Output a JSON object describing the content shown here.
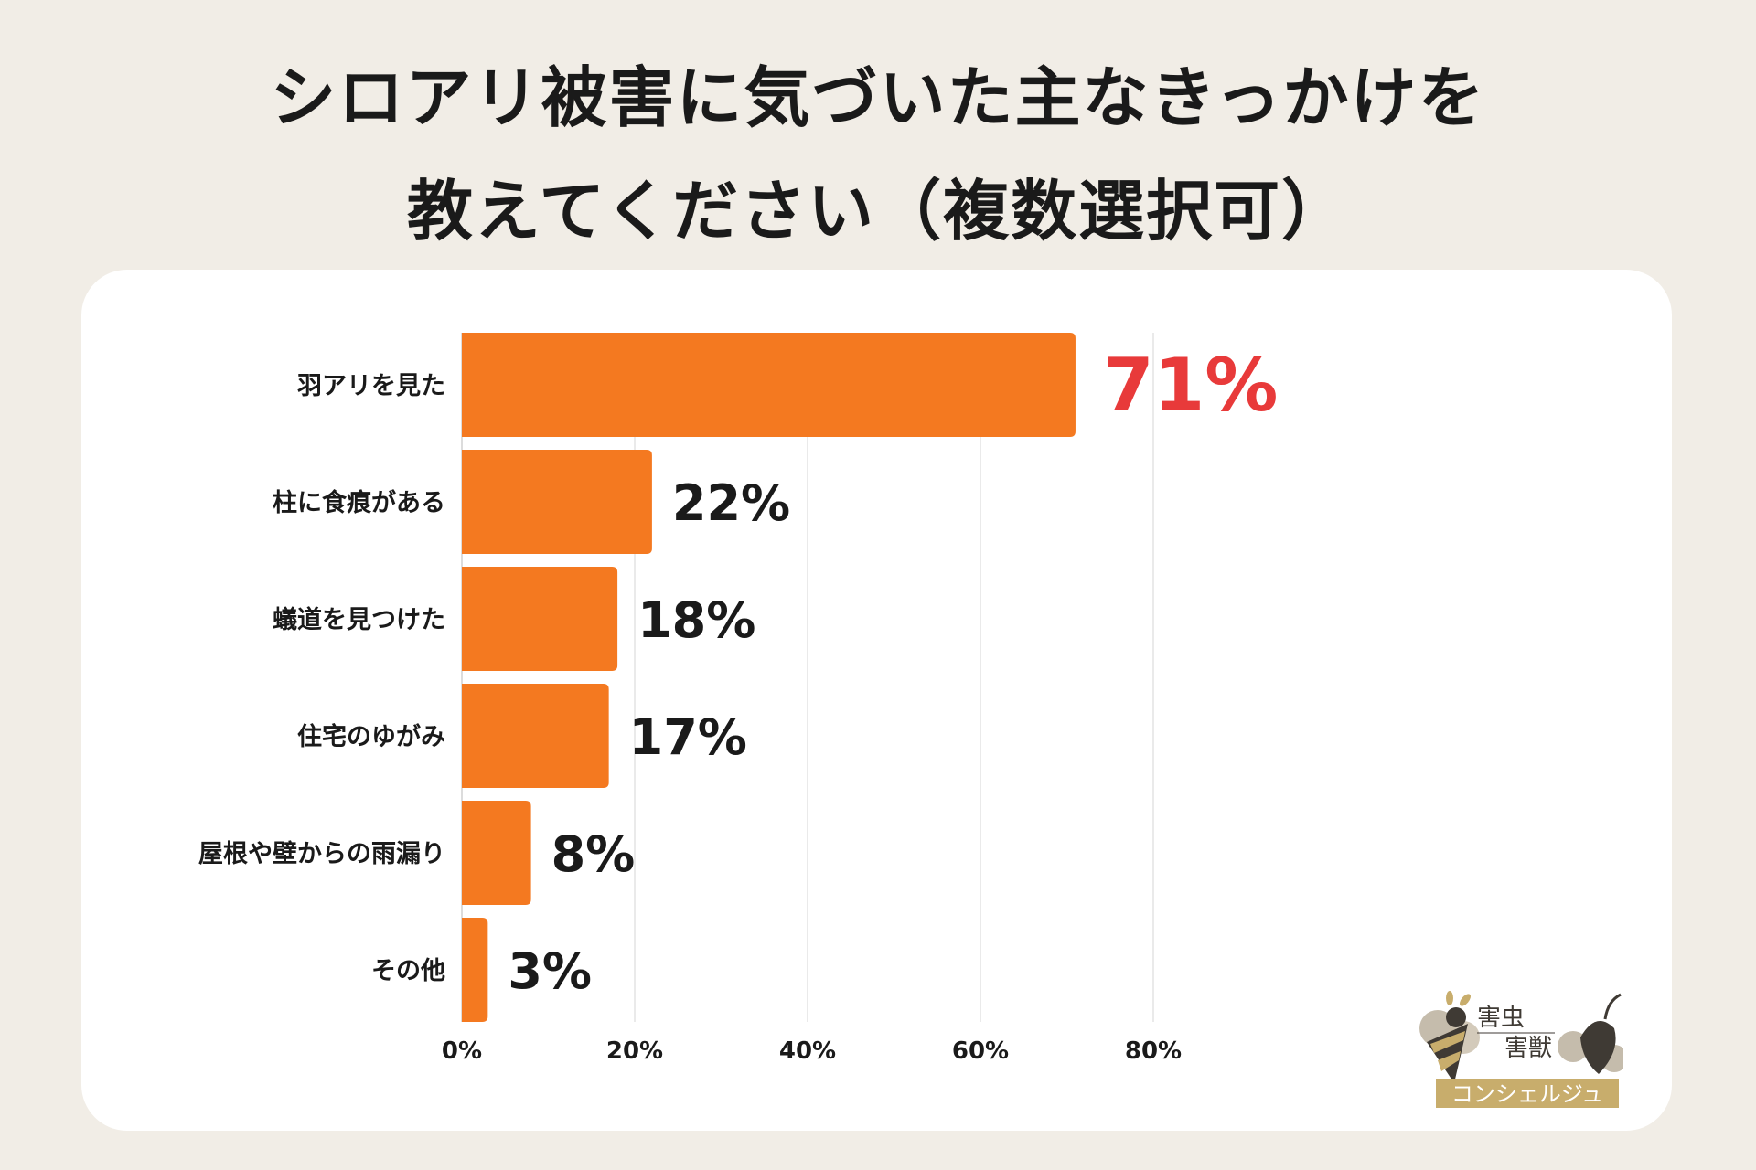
{
  "title": {
    "line1": "シロアリ被害に気づいた主なきっかけを",
    "line2": "教えてください（複数選択可）"
  },
  "colors": {
    "background": "#f1ede6",
    "bar": "#f47920",
    "highlight_label": "#e83a3a",
    "gridline": "#e3e3e3"
  },
  "chart_data": {
    "type": "bar",
    "orientation": "horizontal",
    "categories": [
      "羽アリを見た",
      "柱に食痕がある",
      "蟻道を見つけた",
      "住宅のゆがみ",
      "屋根や壁からの雨漏り",
      "その他"
    ],
    "values": [
      71,
      22,
      18,
      17,
      8,
      3
    ],
    "data_labels": [
      "71%",
      "22%",
      "18%",
      "17%",
      "8%",
      "3%"
    ],
    "xticks": [
      "0%",
      "20%",
      "40%",
      "60%",
      "80%"
    ],
    "xlim": [
      0,
      100
    ],
    "grid": true,
    "highlight_index": 0
  },
  "logo": {
    "line1": "害虫",
    "line2": "害獣",
    "line3": "コンシェルジュ"
  }
}
